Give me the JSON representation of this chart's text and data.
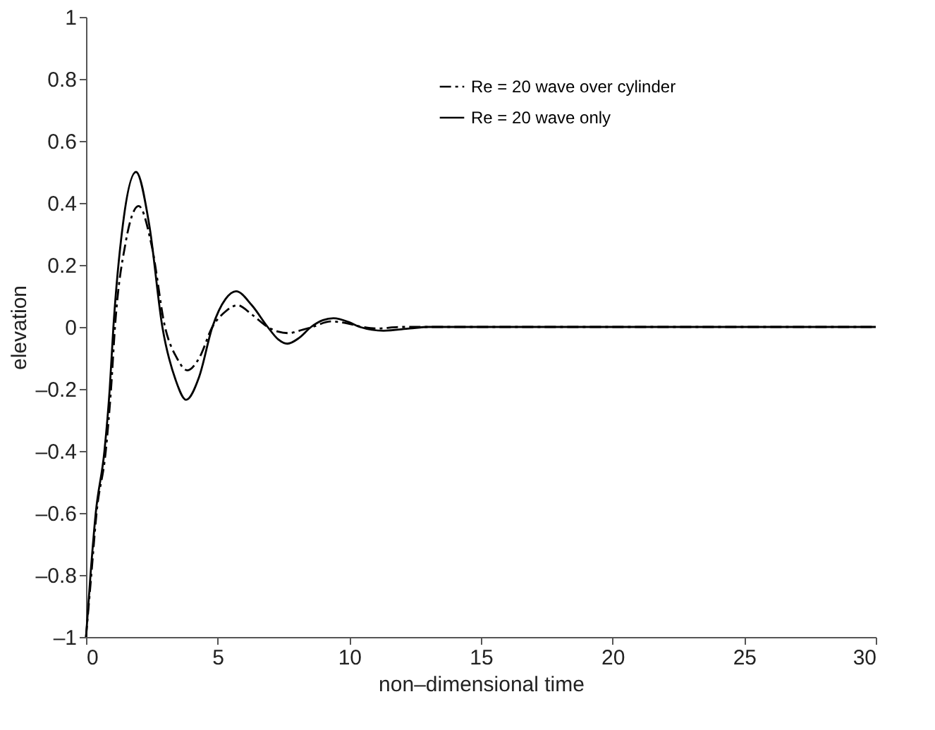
{
  "chart_data": {
    "type": "line",
    "xlabel": "non–dimensional time",
    "ylabel": "elevation",
    "xlim": [
      0,
      30
    ],
    "xticks": [
      0,
      5,
      10,
      15,
      20,
      25,
      30
    ],
    "ylim": [
      -1,
      1
    ],
    "yticks": [
      {
        "value": -1,
        "label": "–1"
      },
      {
        "value": -0.8,
        "label": "–0.8"
      },
      {
        "value": -0.6,
        "label": "–0.6"
      },
      {
        "value": -0.4,
        "label": "–0.4"
      },
      {
        "value": -0.2,
        "label": "–0.2"
      },
      0,
      0.2,
      0.4,
      0.6,
      0.8,
      1
    ],
    "grid": false,
    "legend": "top",
    "marker": "none",
    "series": [
      {
        "name": "Re = 20 wave over cylinder",
        "color": "#000000",
        "line_style": "dashed",
        "x": [
          0,
          0.2,
          0.4,
          0.75,
          0.95,
          1.1,
          1.5,
          2.0,
          2.5,
          3.0,
          3.45,
          3.85,
          4.3,
          4.8,
          5.3,
          5.75,
          6.3,
          6.9,
          7.3,
          7.7,
          8.1,
          8.6,
          9.3,
          10,
          10.5,
          11,
          12,
          13,
          14,
          15,
          20,
          25,
          30
        ],
        "values": [
          -1,
          -0.8,
          -0.6,
          -0.4,
          -0.2,
          0,
          0.27,
          0.39,
          0.26,
          0,
          -0.1,
          -0.14,
          -0.1,
          0,
          0.05,
          0.07,
          0.04,
          0,
          -0.015,
          -0.02,
          -0.012,
          0,
          0.018,
          0.01,
          0,
          -0.005,
          0,
          0,
          0,
          0,
          0,
          0,
          0
        ]
      },
      {
        "name": "Re = 20 wave only",
        "color": "#000000",
        "line_style": "solid",
        "x": [
          0,
          0.17,
          0.37,
          0.7,
          0.9,
          1.04,
          1.4,
          1.9,
          2.4,
          2.9,
          3.4,
          3.8,
          4.3,
          4.8,
          5.3,
          5.7,
          6.3,
          6.9,
          7.3,
          7.65,
          8.1,
          8.55,
          9.0,
          9.4,
          10.0,
          10.4,
          11.3,
          12.3,
          13,
          14,
          15,
          20,
          25,
          30
        ],
        "values": [
          -1,
          -0.8,
          -0.6,
          -0.4,
          -0.2,
          0,
          0.33,
          0.5,
          0.33,
          0,
          -0.17,
          -0.235,
          -0.16,
          0,
          0.09,
          0.115,
          0.07,
          0,
          -0.04,
          -0.054,
          -0.035,
          0,
          0.022,
          0.028,
          0.015,
          0,
          -0.012,
          -0.005,
          0,
          0,
          0,
          0,
          0,
          0
        ]
      }
    ]
  }
}
